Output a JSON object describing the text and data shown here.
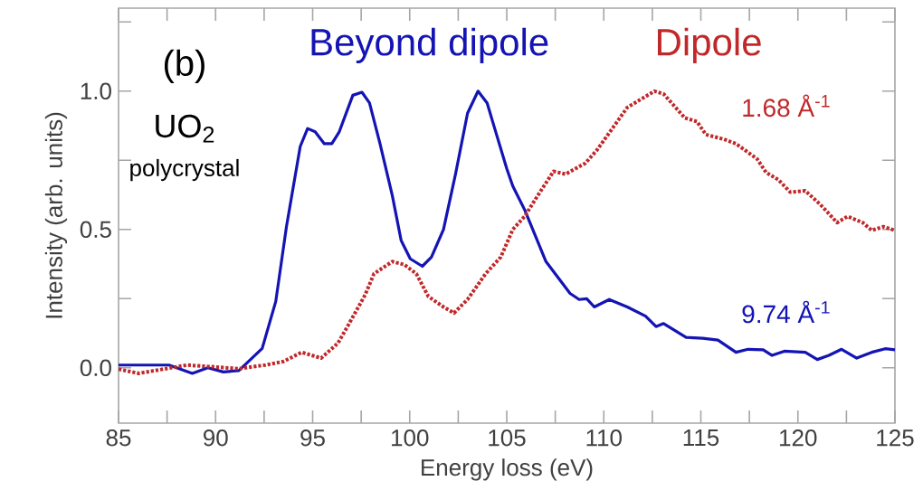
{
  "chart_data": {
    "type": "line",
    "xlabel": "Energy loss (eV)",
    "ylabel": "Intensity (arb. units)",
    "xlim": [
      85,
      125
    ],
    "ylim": [
      -0.2,
      1.3
    ],
    "xticks": [
      85,
      {
        "value": 87.5,
        "label": null
      },
      90,
      {
        "value": 92.5,
        "label": null
      },
      95,
      {
        "value": 97.5,
        "label": null
      },
      100,
      {
        "value": 102.5,
        "label": null
      },
      105,
      {
        "value": 107.5,
        "label": null
      },
      110,
      {
        "value": 112.5,
        "label": null
      },
      115,
      {
        "value": 117.5,
        "label": null
      },
      120,
      {
        "value": 122.5,
        "label": null
      },
      125
    ],
    "yticks": [
      {
        "value": 0,
        "label": "0.0"
      },
      {
        "value": 0.25,
        "label": null
      },
      {
        "value": 0.5,
        "label": "0.5"
      },
      {
        "value": 0.75,
        "label": null
      },
      {
        "value": 1.0,
        "label": "1.0"
      },
      {
        "value": 1.25,
        "label": null
      }
    ],
    "grid": false,
    "legend": false,
    "marker": "none",
    "series": [
      {
        "name": "Beyond dipole",
        "color": "#1414b4",
        "line_style": "solid",
        "x": [
          85,
          87.6,
          88.8,
          89.6,
          90.4,
          91.2,
          92.4,
          93.1,
          93.65,
          94.36,
          94.74,
          95.13,
          95.6,
          95.99,
          96.37,
          97.07,
          97.54,
          97.93,
          98.47,
          99.1,
          99.56,
          100.03,
          100.65,
          101.12,
          101.74,
          102.36,
          102.98,
          103.52,
          103.99,
          104.38,
          105.0,
          105.31,
          105.93,
          107.02,
          108.26,
          108.73,
          109.12,
          109.51,
          110.28,
          111.21,
          112.15,
          112.69,
          113.08,
          114.24,
          115.1,
          115.88,
          116.81,
          117.43,
          118.21,
          118.67,
          119.3,
          120.38,
          121.0,
          121.6,
          122.25,
          123.03,
          123.8,
          124.5,
          125
        ],
        "values": [
          0.01,
          0.01,
          -0.02,
          0.0,
          -0.015,
          -0.01,
          0.07,
          0.24,
          0.51,
          0.8,
          0.865,
          0.853,
          0.81,
          0.81,
          0.853,
          0.985,
          0.996,
          0.957,
          0.81,
          0.624,
          0.46,
          0.394,
          0.367,
          0.4,
          0.5,
          0.7,
          0.92,
          1.0,
          0.957,
          0.865,
          0.72,
          0.657,
          0.57,
          0.384,
          0.269,
          0.247,
          0.25,
          0.22,
          0.247,
          0.22,
          0.187,
          0.149,
          0.16,
          0.11,
          0.107,
          0.1,
          0.056,
          0.067,
          0.065,
          0.045,
          0.06,
          0.056,
          0.03,
          0.045,
          0.067,
          0.035,
          0.056,
          0.069,
          0.065
        ]
      },
      {
        "name": "Dipole",
        "color": "#c0282a",
        "line_style": "dotted",
        "x": [
          85,
          86.04,
          88.53,
          91.2,
          92.57,
          93.5,
          94.43,
          95.44,
          96.3,
          96.92,
          97.7,
          98.16,
          99.1,
          99.72,
          100.34,
          100.96,
          101.74,
          102.28,
          102.98,
          103.91,
          104.69,
          105.31,
          105.93,
          106.71,
          107.41,
          108.03,
          109.04,
          109.66,
          110.44,
          111.21,
          112.61,
          113.08,
          114.18,
          114.8,
          115.26,
          116.19,
          116.81,
          117.9,
          118.36,
          118.99,
          119.6,
          120.38,
          121.16,
          122.02,
          122.56,
          123.34,
          123.8,
          124.4,
          125
        ],
        "values": [
          -0.005,
          -0.02,
          0.01,
          -0.003,
          0.01,
          0.023,
          0.056,
          0.035,
          0.089,
          0.165,
          0.263,
          0.34,
          0.384,
          0.373,
          0.34,
          0.258,
          0.22,
          0.198,
          0.247,
          0.34,
          0.4,
          0.5,
          0.548,
          0.635,
          0.71,
          0.7,
          0.739,
          0.788,
          0.865,
          0.941,
          1.0,
          0.99,
          0.903,
          0.89,
          0.843,
          0.826,
          0.81,
          0.755,
          0.706,
          0.68,
          0.635,
          0.64,
          0.59,
          0.525,
          0.547,
          0.525,
          0.497,
          0.51,
          0.497
        ]
      }
    ],
    "annotations": [
      "(b)",
      "UO$_{2}$",
      "polycrystal",
      "9.74 Å$^{-1}$",
      "1.68 Å$^{-1}$"
    ]
  }
}
